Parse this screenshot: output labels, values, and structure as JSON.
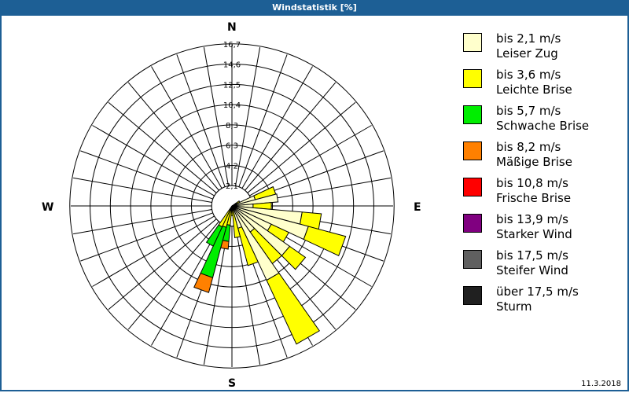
{
  "title": "Windstatistik [%]",
  "date": "11.3.2018",
  "cardinals": {
    "n": "N",
    "e": "E",
    "s": "S",
    "w": "W"
  },
  "legend": [
    {
      "range": "bis 2,1 m/s",
      "name": "Leiser Zug",
      "color": "#ffffcc"
    },
    {
      "range": "bis 3,6 m/s",
      "name": "Leichte Brise",
      "color": "#ffff00"
    },
    {
      "range": "bis 5,7 m/s",
      "name": "Schwache Brise",
      "color": "#00ee00"
    },
    {
      "range": "bis 8,2 m/s",
      "name": "Mäßige Brise",
      "color": "#ff8000"
    },
    {
      "range": "bis 10,8 m/s",
      "name": "Frische Brise",
      "color": "#ff0000"
    },
    {
      "range": "bis 13,9 m/s",
      "name": "Starker Wind",
      "color": "#800080"
    },
    {
      "range": "bis 17,5 m/s",
      "name": "Steifer Wind",
      "color": "#606060"
    },
    {
      "range": "über 17,5 m/s",
      "name": "Sturm",
      "color": "#202020"
    }
  ],
  "chart_data": {
    "type": "wind-rose",
    "title": "Windstatistik [%]",
    "radial_ticks": [
      "2,1",
      "4,2",
      "6,3",
      "8,3",
      "10,4",
      "12,5",
      "14,6",
      "16,7"
    ],
    "radial_max": 16.7,
    "sector_width_deg": 10,
    "series_names": [
      "bis 2,1 m/s",
      "bis 3,6 m/s",
      "bis 5,7 m/s",
      "bis 8,2 m/s"
    ],
    "sectors": [
      {
        "dir": 60,
        "values": [
          0.5,
          0.4,
          0,
          0
        ]
      },
      {
        "dir": 70,
        "values": [
          2.5,
          2.2,
          0,
          0
        ]
      },
      {
        "dir": 80,
        "values": [
          4.8,
          0,
          0,
          0
        ]
      },
      {
        "dir": 90,
        "values": [
          2.2,
          1.9,
          0,
          0
        ]
      },
      {
        "dir": 100,
        "values": [
          7.3,
          2.0,
          0,
          0
        ]
      },
      {
        "dir": 110,
        "values": [
          8.2,
          4.0,
          0,
          0
        ]
      },
      {
        "dir": 120,
        "values": [
          4.5,
          2.0,
          0,
          0
        ]
      },
      {
        "dir": 130,
        "values": [
          7.3,
          2.0,
          0,
          0
        ]
      },
      {
        "dir": 140,
        "values": [
          3.3,
          4.0,
          0,
          0
        ]
      },
      {
        "dir": 150,
        "values": [
          8.5,
          7.3,
          0,
          0
        ]
      },
      {
        "dir": 160,
        "values": [
          2.4,
          4.0,
          0,
          0
        ]
      },
      {
        "dir": 170,
        "values": [
          0.3,
          3.0,
          0,
          0
        ]
      },
      {
        "dir": 180,
        "values": [
          0,
          1.0,
          0,
          0
        ]
      },
      {
        "dir": 190,
        "values": [
          0,
          2.0,
          1.7,
          0.8
        ]
      },
      {
        "dir": 200,
        "values": [
          0,
          2.3,
          5.4,
          1.6
        ]
      },
      {
        "dir": 210,
        "values": [
          0,
          2.4,
          2.2,
          0
        ]
      }
    ]
  }
}
